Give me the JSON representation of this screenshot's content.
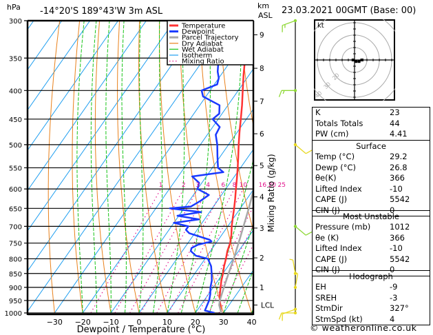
{
  "header": {
    "pressure_unit": "hPa",
    "location": "-14°20'S  189°43'W  3m ASL",
    "height_unit_line1": "km",
    "height_unit_line2": "ASL",
    "datetime": "23.03.2021  00GMT  (Base: 00)"
  },
  "chart_data": {
    "type": "line",
    "title": "-14°20'S 189°43'W 3m ASL",
    "subtitle": "23.03.2021 00GMT (Base: 00)",
    "xlabel": "Dewpoint / Temperature (°C)",
    "ylabel": "hPa",
    "right_axis_label": "Mixing Ratio (g/kg)",
    "x_ticks": [
      -30,
      -20,
      -10,
      0,
      10,
      20,
      30,
      40
    ],
    "xlim": [
      -40,
      40
    ],
    "y_ticks": [
      300,
      350,
      400,
      450,
      500,
      550,
      600,
      650,
      700,
      750,
      800,
      850,
      900,
      950,
      1000
    ],
    "ylim": [
      1000,
      300
    ],
    "y_scale": "log",
    "skew": true,
    "km_ticks": [
      {
        "label": "1",
        "p": 900
      },
      {
        "label": "2",
        "p": 797
      },
      {
        "label": "3",
        "p": 705
      },
      {
        "label": "4",
        "p": 620
      },
      {
        "label": "5",
        "p": 545
      },
      {
        "label": "6",
        "p": 478
      },
      {
        "label": "7",
        "p": 418
      },
      {
        "label": "8",
        "p": 365
      },
      {
        "label": "9",
        "p": 318
      },
      {
        "label": "LCL",
        "p": 968
      }
    ],
    "mixing_ratio_labels": [
      "1",
      "2",
      "3",
      "4",
      "6",
      "8",
      "10",
      "16",
      "20",
      "25"
    ],
    "mixing_ratio_values": [
      1,
      2,
      3,
      4,
      6,
      8,
      10,
      16,
      20,
      25
    ],
    "legend": [
      {
        "name": "Temperature",
        "color": "#ff3333",
        "style": "thick"
      },
      {
        "name": "Dewpoint",
        "color": "#1a3aff",
        "style": "thick"
      },
      {
        "name": "Parcel Trajectory",
        "color": "#a8a8a8",
        "style": "thick"
      },
      {
        "name": "Dry Adiabat",
        "color": "#e8801a",
        "style": "thin"
      },
      {
        "name": "Wet Adiabat",
        "color": "#16c416",
        "style": "thin"
      },
      {
        "name": "Isotherm",
        "color": "#1e9ef0",
        "style": "thin"
      },
      {
        "name": "Mixing Ratio",
        "color": "#e0108a",
        "style": "dotted"
      }
    ],
    "legend_position": "top-right",
    "series": [
      {
        "name": "Temperature",
        "points": [
          [
            1000,
            29.2
          ],
          [
            975,
            27.4
          ],
          [
            950,
            25.6
          ],
          [
            925,
            24.0
          ],
          [
            900,
            22.6
          ],
          [
            875,
            21.2
          ],
          [
            850,
            20.0
          ],
          [
            825,
            18.6
          ],
          [
            800,
            17.4
          ],
          [
            775,
            16.0
          ],
          [
            750,
            15.0
          ],
          [
            725,
            13.4
          ],
          [
            700,
            11.4
          ],
          [
            675,
            9.6
          ],
          [
            650,
            7.8
          ],
          [
            625,
            5.8
          ],
          [
            600,
            3.6
          ],
          [
            575,
            1.4
          ],
          [
            550,
            -1.0
          ],
          [
            525,
            -3.6
          ],
          [
            500,
            -6.4
          ],
          [
            475,
            -9.2
          ],
          [
            450,
            -12.0
          ],
          [
            425,
            -15.0
          ],
          [
            400,
            -18.4
          ],
          [
            375,
            -22.0
          ],
          [
            350,
            -25.6
          ],
          [
            325,
            -30.0
          ],
          [
            300,
            -34.4
          ]
        ]
      },
      {
        "name": "Dewpoint",
        "points": [
          [
            1000,
            26.8
          ],
          [
            990,
            22.8
          ],
          [
            975,
            22.4
          ],
          [
            950,
            21.8
          ],
          [
            925,
            20.6
          ],
          [
            900,
            19.0
          ],
          [
            875,
            17.8
          ],
          [
            850,
            16.0
          ],
          [
            825,
            14.0
          ],
          [
            800,
            11.0
          ],
          [
            790,
            6.0
          ],
          [
            775,
            3.0
          ],
          [
            765,
            2.5
          ],
          [
            755,
            4.0
          ],
          [
            745,
            8.0
          ],
          [
            740,
            7.0
          ],
          [
            720,
            -2.0
          ],
          [
            710,
            -4.0
          ],
          [
            700,
            -4.0
          ],
          [
            690,
            -10.0
          ],
          [
            680,
            -2.0
          ],
          [
            670,
            -10.5
          ],
          [
            660,
            -3.0
          ],
          [
            650,
            -15.0
          ],
          [
            645,
            -8.0
          ],
          [
            630,
            -6.0
          ],
          [
            615,
            -4.5
          ],
          [
            600,
            -10.0
          ],
          [
            585,
            -11.0
          ],
          [
            570,
            -15.0
          ],
          [
            560,
            -5.0
          ],
          [
            550,
            -8.0
          ],
          [
            525,
            -11.0
          ],
          [
            500,
            -14.0
          ],
          [
            480,
            -17.0
          ],
          [
            465,
            -17.5
          ],
          [
            450,
            -22.0
          ],
          [
            440,
            -21.0
          ],
          [
            425,
            -23.0
          ],
          [
            410,
            -31.0
          ],
          [
            400,
            -33.0
          ],
          [
            390,
            -29.0
          ],
          [
            380,
            -30.0
          ],
          [
            370,
            -32.0
          ],
          [
            350,
            -35.0
          ],
          [
            335,
            -38.0
          ],
          [
            320,
            -44.0
          ],
          [
            310,
            -47.0
          ],
          [
            300,
            -50.0
          ]
        ]
      },
      {
        "name": "Parcel Trajectory",
        "points": [
          [
            1000,
            29.2
          ],
          [
            968,
            26.5
          ],
          [
            950,
            25.6
          ],
          [
            900,
            23.8
          ],
          [
            850,
            22.0
          ],
          [
            800,
            20.2
          ],
          [
            750,
            18.0
          ],
          [
            700,
            15.6
          ],
          [
            650,
            13.0
          ],
          [
            600,
            10.0
          ],
          [
            550,
            6.5
          ],
          [
            500,
            2.6
          ],
          [
            450,
            -2.0
          ],
          [
            400,
            -7.6
          ],
          [
            350,
            -14.6
          ],
          [
            300,
            -23.4
          ]
        ]
      }
    ],
    "wind_barbs": [
      {
        "p": 1000,
        "dir_deg": 270,
        "speed_kt": 10,
        "color": "#e8d820"
      },
      {
        "p": 985,
        "dir_deg": 250,
        "speed_kt": 10,
        "color": "#e8d820"
      },
      {
        "p": 900,
        "dir_deg": 10,
        "speed_kt": 5,
        "color": "#e8d820"
      },
      {
        "p": 850,
        "dir_deg": 350,
        "speed_kt": 5,
        "color": "#e8d820"
      },
      {
        "p": 700,
        "dir_deg": 130,
        "speed_kt": 10,
        "color": "#8ed835"
      },
      {
        "p": 500,
        "dir_deg": 130,
        "speed_kt": 10,
        "color": "#e8d820"
      },
      {
        "p": 400,
        "dir_deg": 270,
        "speed_kt": 15,
        "color": "#8ed835"
      },
      {
        "p": 300,
        "dir_deg": 250,
        "speed_kt": 15,
        "color": "#8ed835"
      }
    ]
  },
  "hodograph": {
    "unit_label": "kt",
    "ring_labels": [
      "10",
      "20",
      "30",
      "40"
    ],
    "points_kt": [
      [
        -1,
        0
      ],
      [
        1,
        -1
      ],
      [
        3,
        -1
      ],
      [
        5,
        0
      ]
    ],
    "storm_motion": {
      "dir_deg": 327,
      "speed_kt": 4
    }
  },
  "indices": {
    "rows": [
      {
        "label": "K",
        "value": "23"
      },
      {
        "label": "Totals Totals",
        "value": "44"
      },
      {
        "label": "PW (cm)",
        "value": "4.41"
      }
    ]
  },
  "surface": {
    "title": "Surface",
    "rows": [
      {
        "label": "Temp (°C)",
        "value": "29.2"
      },
      {
        "label": "Dewp (°C)",
        "value": "26.8"
      },
      {
        "label": "θe(K)",
        "value": "366"
      },
      {
        "label": "Lifted Index",
        "value": "-10"
      },
      {
        "label": "CAPE (J)",
        "value": "5542"
      },
      {
        "label": "CIN (J)",
        "value": "0"
      }
    ]
  },
  "most_unstable": {
    "title": "Most Unstable",
    "rows": [
      {
        "label": "Pressure (mb)",
        "value": "1012"
      },
      {
        "label": "θe (K)",
        "value": "366"
      },
      {
        "label": "Lifted Index",
        "value": "-10"
      },
      {
        "label": "CAPE (J)",
        "value": "5542"
      },
      {
        "label": "CIN (J)",
        "value": "0"
      }
    ]
  },
  "hodograph_table": {
    "title": "Hodograph",
    "rows": [
      {
        "label": "EH",
        "value": "-9"
      },
      {
        "label": "SREH",
        "value": "-3"
      },
      {
        "label": "StmDir",
        "value": "327°"
      },
      {
        "label": "StmSpd (kt)",
        "value": "4"
      }
    ]
  },
  "footer": {
    "copyright": "© weatheronline.co.uk"
  }
}
